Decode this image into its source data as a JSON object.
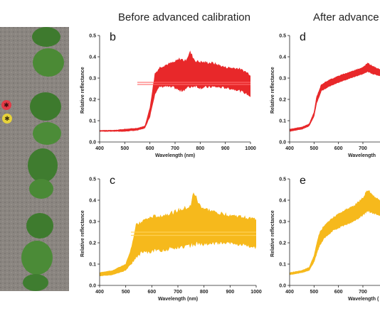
{
  "headers": {
    "before": "Before advanced calibration",
    "after": "After advance"
  },
  "photo": {
    "markers": [
      {
        "color": "#e23a46",
        "symbol": "✱"
      },
      {
        "color": "#e6d23a",
        "symbol": "✱"
      }
    ]
  },
  "chart_data": [
    {
      "id": "b",
      "type": "area",
      "panel_label": "b",
      "color": "#e8282a",
      "xlabel": "Wavelength (nm)",
      "ylabel": "Relative reflectance",
      "xlim": [
        400,
        1000
      ],
      "ylim": [
        0,
        0.5
      ],
      "x_ticks": [
        400,
        500,
        600,
        700,
        800,
        900,
        1000
      ],
      "y_ticks": [
        0.0,
        0.1,
        0.2,
        0.3,
        0.4,
        0.5
      ],
      "band": {
        "x": [
          400,
          450,
          500,
          550,
          580,
          600,
          620,
          640,
          660,
          700,
          720,
          740,
          760,
          780,
          800,
          850,
          900,
          950,
          980,
          1000
        ],
        "lower": [
          0.05,
          0.05,
          0.05,
          0.055,
          0.065,
          0.12,
          0.23,
          0.26,
          0.262,
          0.255,
          0.24,
          0.25,
          0.26,
          0.265,
          0.255,
          0.26,
          0.255,
          0.245,
          0.23,
          0.215
        ],
        "upper": [
          0.055,
          0.055,
          0.06,
          0.065,
          0.075,
          0.16,
          0.32,
          0.35,
          0.36,
          0.375,
          0.39,
          0.38,
          0.42,
          0.38,
          0.375,
          0.37,
          0.35,
          0.345,
          0.33,
          0.315
        ]
      },
      "mean_lines": [
        0.27,
        0.28
      ]
    },
    {
      "id": "c",
      "type": "area",
      "panel_label": "c",
      "color": "#f6b91c",
      "xlabel": "Wavelength (nm)",
      "ylabel": "Relative reflectance",
      "xlim": [
        400,
        1000
      ],
      "ylim": [
        0,
        0.5
      ],
      "x_ticks": [
        400,
        500,
        600,
        700,
        800,
        900,
        1000
      ],
      "y_ticks": [
        0.0,
        0.1,
        0.2,
        0.3,
        0.4,
        0.5
      ],
      "band": {
        "x": [
          400,
          450,
          500,
          520,
          540,
          560,
          600,
          650,
          700,
          750,
          760,
          780,
          800,
          850,
          900,
          950,
          1000
        ],
        "lower": [
          0.045,
          0.05,
          0.07,
          0.1,
          0.13,
          0.155,
          0.16,
          0.17,
          0.18,
          0.19,
          0.2,
          0.195,
          0.19,
          0.2,
          0.2,
          0.19,
          0.18
        ],
        "upper": [
          0.06,
          0.07,
          0.1,
          0.17,
          0.28,
          0.3,
          0.32,
          0.33,
          0.35,
          0.37,
          0.44,
          0.38,
          0.36,
          0.34,
          0.33,
          0.32,
          0.31
        ]
      },
      "mean_lines": [
        0.235,
        0.25
      ]
    },
    {
      "id": "d",
      "type": "area",
      "panel_label": "d",
      "color": "#e8282a",
      "xlabel": "Wavelength",
      "ylabel": "Relative reflectance",
      "xlim": [
        400,
        770
      ],
      "ylim": [
        0,
        0.5
      ],
      "x_ticks": [
        400,
        500,
        600,
        700
      ],
      "y_ticks": [
        0.0,
        0.1,
        0.2,
        0.3,
        0.4,
        0.5
      ],
      "band": {
        "x": [
          400,
          450,
          480,
          500,
          510,
          530,
          560,
          600,
          650,
          700,
          720,
          740,
          770
        ],
        "lower": [
          0.05,
          0.06,
          0.075,
          0.12,
          0.18,
          0.24,
          0.26,
          0.28,
          0.3,
          0.32,
          0.33,
          0.32,
          0.31
        ],
        "upper": [
          0.06,
          0.07,
          0.085,
          0.14,
          0.21,
          0.27,
          0.29,
          0.31,
          0.33,
          0.35,
          0.37,
          0.355,
          0.34
        ]
      }
    },
    {
      "id": "e",
      "type": "area",
      "panel_label": "e",
      "color": "#f6b91c",
      "xlabel": "Wavelength (",
      "ylabel": "Relative reflectance",
      "xlim": [
        400,
        770
      ],
      "ylim": [
        0,
        0.5
      ],
      "x_ticks": [
        400,
        500,
        600,
        700
      ],
      "y_ticks": [
        0.0,
        0.1,
        0.2,
        0.3,
        0.4,
        0.5
      ],
      "band": {
        "x": [
          400,
          450,
          480,
          500,
          520,
          540,
          580,
          620,
          660,
          700,
          720,
          740,
          770
        ],
        "lower": [
          0.05,
          0.06,
          0.07,
          0.11,
          0.18,
          0.22,
          0.26,
          0.28,
          0.3,
          0.33,
          0.35,
          0.34,
          0.33
        ],
        "upper": [
          0.06,
          0.07,
          0.085,
          0.14,
          0.24,
          0.28,
          0.32,
          0.35,
          0.37,
          0.41,
          0.45,
          0.42,
          0.4
        ]
      }
    }
  ]
}
